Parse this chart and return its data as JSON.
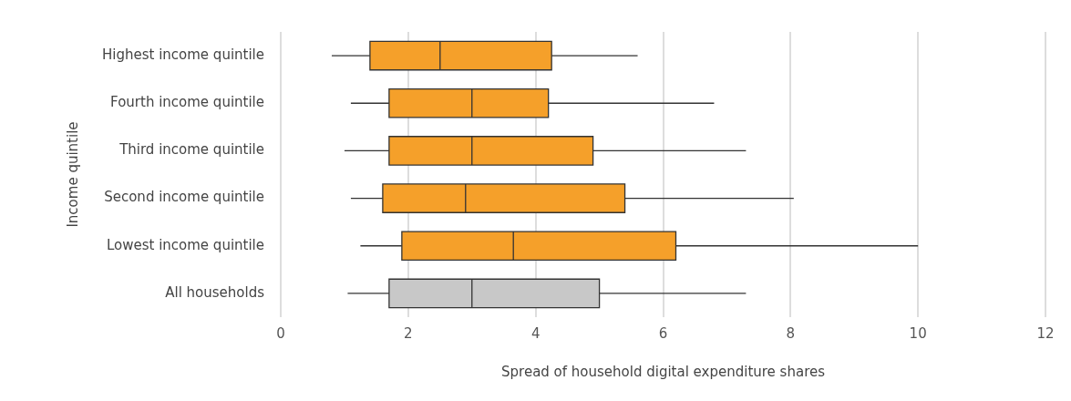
{
  "chart_data": {
    "type": "box",
    "orientation": "horizontal",
    "xlabel": "Spread of household digital expenditure shares",
    "ylabel": "Income quintile",
    "categories": [
      "Highest income quintile",
      "Fourth income quintile",
      "Third income quintile",
      "Second income quintile",
      "Lowest income quintile",
      "All households"
    ],
    "boxes": [
      {
        "low": 0.8,
        "q1": 1.4,
        "median": 2.5,
        "q3": 4.25,
        "high": 5.6
      },
      {
        "low": 1.1,
        "q1": 1.7,
        "median": 3.0,
        "q3": 4.2,
        "high": 6.8
      },
      {
        "low": 1.0,
        "q1": 1.7,
        "median": 3.0,
        "q3": 4.9,
        "high": 7.3
      },
      {
        "low": 1.1,
        "q1": 1.6,
        "median": 2.9,
        "q3": 5.4,
        "high": 8.05
      },
      {
        "low": 1.25,
        "q1": 1.9,
        "median": 3.65,
        "q3": 6.2,
        "high": 10.0
      },
      {
        "low": 1.05,
        "q1": 1.7,
        "median": 3.0,
        "q3": 5.0,
        "high": 7.3
      }
    ],
    "colors": [
      "#f5a02a",
      "#f5a02a",
      "#f5a02a",
      "#f5a02a",
      "#f5a02a",
      "#c8c8c8"
    ],
    "xlim": [
      0,
      12
    ],
    "xticks": [
      0,
      2,
      4,
      6,
      8,
      10,
      12
    ],
    "grid": "x"
  }
}
